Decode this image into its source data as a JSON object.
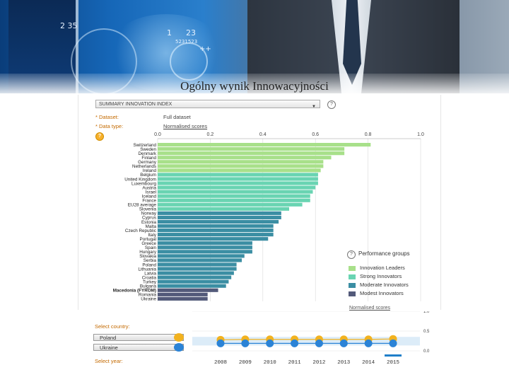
{
  "page": {
    "title": "Ogólny wynik Innowacyjności"
  },
  "banner": {
    "holo_numbers": [
      "2 35",
      "1",
      "23",
      "5231523",
      "++"
    ]
  },
  "panel": {
    "indicator_select": "SUMMARY INNOVATION INDEX",
    "dataset_label": "* Dataset:",
    "dataset_value": "Full dataset",
    "data_type_label": "* Data type:",
    "data_type_value": "Normalised scores",
    "help": "?"
  },
  "legend": {
    "header": "Performance groups",
    "items": [
      {
        "label": "Innovation Leaders",
        "color": "#a8e08a"
      },
      {
        "label": "Strong Innovators",
        "color": "#69d4b2"
      },
      {
        "label": "Moderate Innovators",
        "color": "#3b8ea3"
      },
      {
        "label": "Modest Innovators",
        "color": "#535a7a"
      }
    ],
    "faded_link": "Normalised scores"
  },
  "chart_data": [
    {
      "type": "bar",
      "orientation": "horizontal",
      "xlim": [
        0,
        1
      ],
      "xticks": [
        "0.0",
        "0.2",
        "0.4",
        "0.6",
        "0.8",
        "1.0"
      ],
      "categories": [
        "Switzerland",
        "Sweden",
        "Denmark",
        "Finland",
        "Germany",
        "Netherlands",
        "Ireland",
        "Belgium",
        "United Kingdom",
        "Luxembourg",
        "Austria",
        "Israel",
        "Iceland",
        "France",
        "EU28 average",
        "Slovenia",
        "Norway",
        "Cyprus",
        "Estonia",
        "Malta",
        "Czech Republic",
        "Italy",
        "Portugal",
        "Greece",
        "Spain",
        "Hungary",
        "Slovakia",
        "Serbia",
        "Poland",
        "Lithuania",
        "Latvia",
        "Croatia",
        "Turkey",
        "Bulgaria",
        "Macedonia (FYROM)",
        "Romania",
        "Ukraine"
      ],
      "values": [
        0.81,
        0.71,
        0.71,
        0.66,
        0.63,
        0.63,
        0.62,
        0.61,
        0.61,
        0.61,
        0.6,
        0.59,
        0.58,
        0.58,
        0.55,
        0.5,
        0.47,
        0.47,
        0.46,
        0.44,
        0.44,
        0.44,
        0.42,
        0.36,
        0.36,
        0.36,
        0.33,
        0.32,
        0.3,
        0.3,
        0.29,
        0.28,
        0.27,
        0.26,
        0.23,
        0.19,
        0.19
      ],
      "groups": [
        "leader",
        "leader",
        "leader",
        "leader",
        "leader",
        "leader",
        "leader",
        "strong",
        "strong",
        "strong",
        "strong",
        "strong",
        "strong",
        "strong",
        "strong",
        "strong",
        "moderate",
        "moderate",
        "moderate",
        "moderate",
        "moderate",
        "moderate",
        "moderate",
        "moderate",
        "moderate",
        "moderate",
        "moderate",
        "moderate",
        "moderate",
        "moderate",
        "moderate",
        "moderate",
        "moderate",
        "moderate",
        "modest",
        "modest",
        "modest"
      ],
      "group_colors": {
        "leader": "#a8e08a",
        "strong": "#69d4b2",
        "moderate": "#3b8ea3",
        "modest": "#535a7a"
      }
    },
    {
      "type": "line",
      "x": [
        "2008",
        "2009",
        "2010",
        "2011",
        "2012",
        "2013",
        "2014",
        "2015"
      ],
      "yticks": [
        "1.0",
        "0.5",
        "0.0"
      ],
      "series": [
        {
          "name": "Poland",
          "values": [
            0.28,
            0.29,
            0.29,
            0.29,
            0.29,
            0.29,
            0.29,
            0.3
          ],
          "color": "#f2b21f"
        },
        {
          "name": "Ukraine",
          "values": [
            0.19,
            0.19,
            0.19,
            0.19,
            0.19,
            0.19,
            0.19,
            0.19
          ],
          "color": "#2b83d6"
        }
      ]
    }
  ],
  "bottom": {
    "select_country": "Select country:",
    "select_year": "Select year:",
    "countries": [
      "Poland",
      "Ukraine"
    ]
  }
}
